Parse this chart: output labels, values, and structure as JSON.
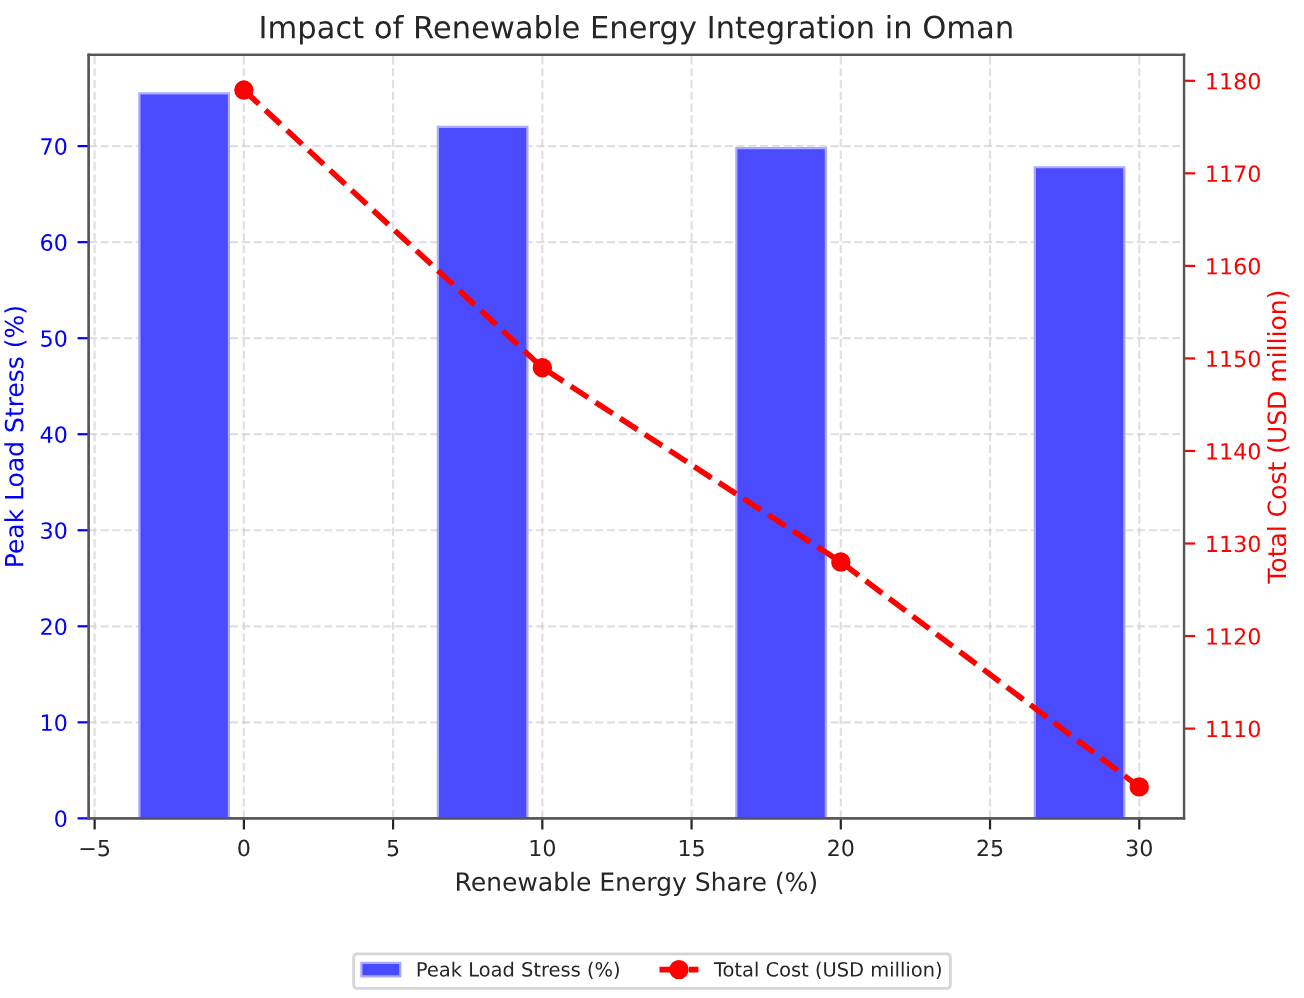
{
  "chart_data": {
    "type": "bar",
    "title": "Impact of Renewable Energy Integration in Oman",
    "xlabel": "Renewable Energy Share (%)",
    "ylabel": "Peak Load Stress (%)",
    "y2label": "Total Cost (USD million)",
    "series": [
      {
        "name": "Peak Load Stress (%)",
        "color": "#4a4aff",
        "x": [
          -2,
          8,
          18,
          28
        ],
        "values": [
          75.5,
          72,
          69.8,
          67.8
        ]
      },
      {
        "name": "Total Cost (USD million)",
        "type": "line",
        "axis": "y2",
        "color": "#ff0000",
        "x": [
          0,
          10,
          20,
          30
        ],
        "values": [
          1179,
          1149,
          1128,
          1103.7
        ],
        "marker": "circle",
        "line_style": "dashed"
      }
    ],
    "xlim": [
      -5.2,
      31.5
    ],
    "xticks": [
      {
        "value": -5,
        "label": "−5"
      },
      0,
      5,
      10,
      15,
      20,
      25,
      30
    ],
    "ylim": [
      0,
      79.5
    ],
    "yticks": [
      0,
      10,
      20,
      30,
      40,
      50,
      60,
      70
    ],
    "y2lim": [
      1100.3,
      1182.8
    ],
    "y2ticks": [
      1110,
      1120,
      1130,
      1140,
      1150,
      1160,
      1170,
      1180
    ],
    "grid": true,
    "legend": "bottom"
  }
}
